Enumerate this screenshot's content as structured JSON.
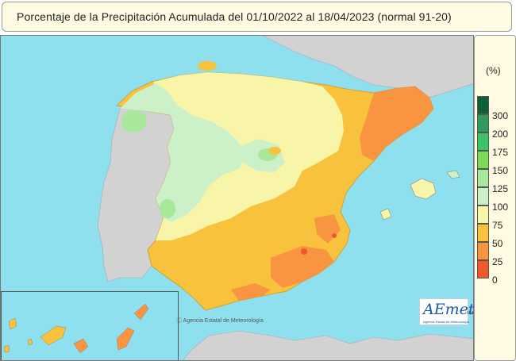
{
  "header": {
    "title": "Porcentaje de la Precipitación Acumulada  del 01/10/2022 al 18/04/2023  (normal 91-20)"
  },
  "legend": {
    "unit": "(%)",
    "items": [
      {
        "label": "300",
        "color": "#0c5f36"
      },
      {
        "label": "200",
        "color": "#2f9a5a"
      },
      {
        "label": "175",
        "color": "#3cc267"
      },
      {
        "label": "150",
        "color": "#7ed957"
      },
      {
        "label": "125",
        "color": "#a8e89a"
      },
      {
        "label": "100",
        "color": "#ccf0c8"
      },
      {
        "label": "75",
        "color": "#f8f4a8"
      },
      {
        "label": "50",
        "color": "#f9c23c"
      },
      {
        "label": "25",
        "color": "#f99540"
      },
      {
        "label": "0",
        "color": "#f05a2a"
      }
    ]
  },
  "footer": {
    "credit": "Ⓒ Agencia Estatal de Meteorología",
    "logo": "AEmet",
    "logo_sub": "Agencia Estatal de Meteorología",
    "map_id": "564"
  }
}
